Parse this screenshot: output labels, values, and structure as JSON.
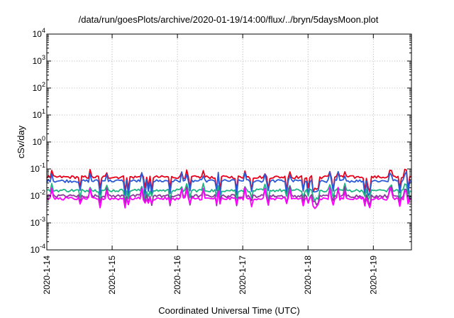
{
  "chart_data": {
    "type": "line",
    "title": "/data/run/goesPlots/archive/2020-01-19/14:00/flux/../bryn/5daysMoon.plot",
    "xlabel": "Coordinated Universal Time (UTC)",
    "ylabel": "cSv/day",
    "yscale": "log",
    "ylim": [
      0.0001,
      10000
    ],
    "xlim": [
      "2020-01-14",
      "2020-01-19 14:00"
    ],
    "x_ticks": [
      "2020-1-14",
      "2020-1-15",
      "2020-1-16",
      "2020-1-17",
      "2020-1-18",
      "2020-1-19"
    ],
    "y_ticks": [
      {
        "base": "10",
        "exp": "-4"
      },
      {
        "base": "10",
        "exp": "-3"
      },
      {
        "base": "10",
        "exp": "-2"
      },
      {
        "base": "10",
        "exp": "-1"
      },
      {
        "base": "10",
        "exp": "0"
      },
      {
        "base": "10",
        "exp": "1"
      },
      {
        "base": "10",
        "exp": "2"
      },
      {
        "base": "10",
        "exp": "3"
      },
      {
        "base": "10",
        "exp": "4"
      }
    ],
    "grid": true,
    "series": [
      {
        "color": "#e8001a",
        "base": 0.05,
        "low": 0.018,
        "peak": 0.085
      },
      {
        "color": "#2a5ad8",
        "base": 0.036,
        "low": 0.013,
        "peak": 0.072
      },
      {
        "color": "#1fb585",
        "base": 0.016,
        "low": 0.008,
        "peak": 0.026
      },
      {
        "color": "#8a3a9a",
        "base": 0.01,
        "low": 0.0055,
        "peak": 0.02
      },
      {
        "color": "#ff00ff",
        "base": 0.008,
        "low": 0.0045,
        "peak": 0.018
      }
    ]
  }
}
